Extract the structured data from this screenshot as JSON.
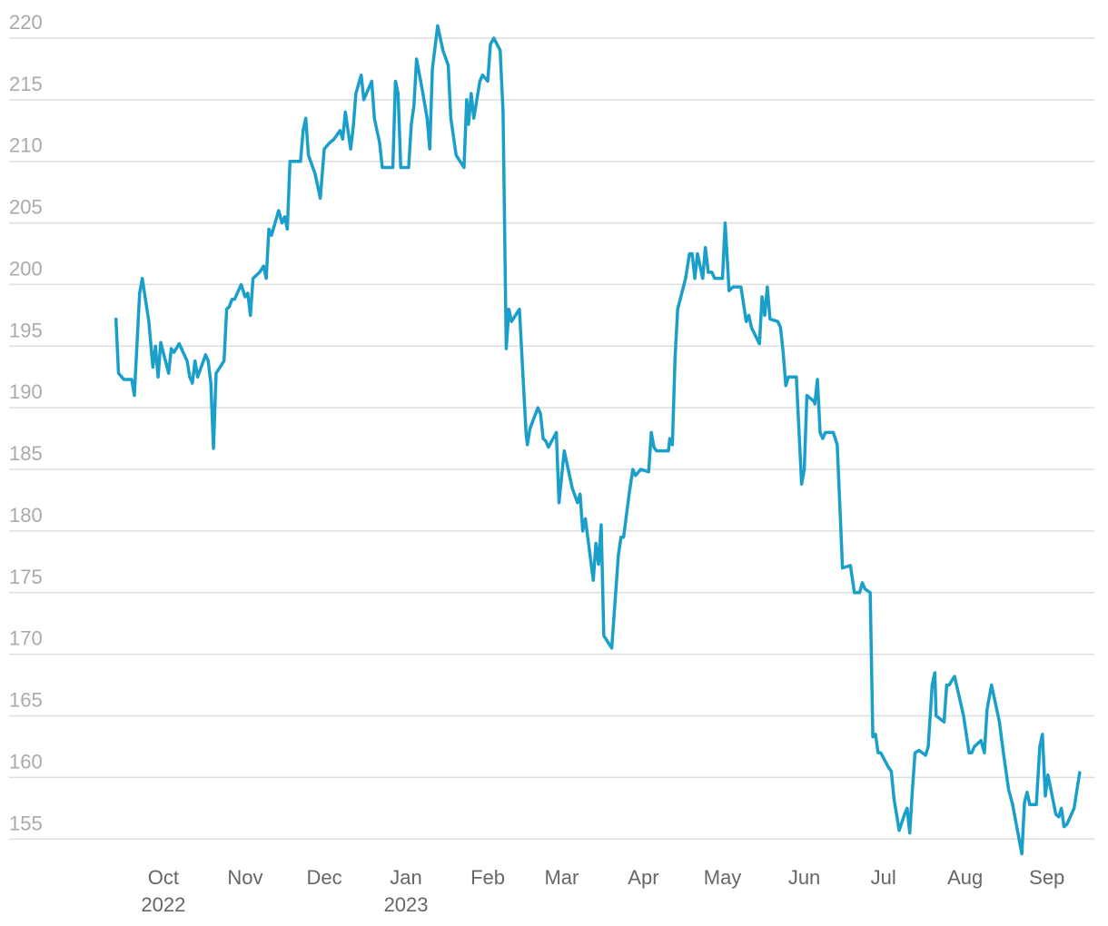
{
  "chart_data": {
    "type": "line",
    "color": "#1a9fcb",
    "grid": true,
    "xlim": [
      -58.5,
      353
    ],
    "ylim": [
      153,
      221.5
    ],
    "yticks": [
      155,
      160,
      165,
      170,
      175,
      180,
      185,
      190,
      195,
      200,
      205,
      210,
      215,
      220
    ],
    "xticks": [
      {
        "value": 0,
        "label": "Oct"
      },
      {
        "value": 31,
        "label": "Nov"
      },
      {
        "value": 61,
        "label": "Dec"
      },
      {
        "value": 92,
        "label": "Jan"
      },
      {
        "value": 123,
        "label": "Feb"
      },
      {
        "value": 151,
        "label": "Mar"
      },
      {
        "value": 182,
        "label": "Apr"
      },
      {
        "value": 212,
        "label": "May"
      },
      {
        "value": 243,
        "label": "Jun"
      },
      {
        "value": 273,
        "label": "Jul"
      },
      {
        "value": 304,
        "label": "Aug"
      },
      {
        "value": 335,
        "label": "Sep"
      }
    ],
    "year_labels": [
      {
        "value": 0,
        "label": "2022"
      },
      {
        "value": 92,
        "label": "2023"
      }
    ],
    "x": [
      -18,
      -17,
      -15,
      -12,
      -11,
      -9,
      -8,
      -5.5,
      -4,
      -3,
      -2,
      -1,
      2,
      3,
      4,
      6,
      9,
      10,
      11,
      12,
      13,
      16,
      17,
      18,
      19,
      20,
      23,
      24,
      25,
      26,
      27,
      29.5,
      31,
      32,
      33,
      34,
      36.5,
      38,
      39,
      40,
      41,
      43.7,
      45,
      46,
      47,
      48,
      52,
      53,
      54,
      55,
      57.5,
      59.5,
      61,
      63,
      64.7,
      67,
      68,
      69,
      71,
      72,
      73,
      75,
      76,
      79,
      80,
      82,
      83,
      87,
      88,
      89,
      90,
      93,
      94,
      95,
      96,
      98,
      100,
      101,
      102,
      104,
      106,
      108,
      109,
      111,
      114,
      115,
      115.7,
      116.7,
      117.7,
      120,
      121,
      123,
      124,
      125.3,
      127.7,
      128.8,
      130,
      131,
      132,
      135,
      137.5,
      138,
      139,
      142,
      143,
      144,
      145,
      146,
      149,
      150,
      152,
      155,
      157,
      158,
      159,
      160,
      163,
      164,
      165,
      166,
      167,
      170,
      171.5,
      172.5,
      173.5,
      174.5,
      176.6,
      178,
      179,
      181,
      184,
      185,
      186,
      187,
      191.5,
      192,
      193,
      194,
      195,
      198,
      199.5,
      200.5,
      201.5,
      202.5,
      204.5,
      205.5,
      206.6,
      208,
      209,
      212,
      213,
      214.5,
      216,
      219,
      221,
      222,
      223,
      226,
      227,
      228,
      229,
      230,
      233,
      234,
      235,
      236,
      237,
      240,
      242,
      243,
      244,
      246.8,
      247,
      248,
      249,
      250,
      251,
      254,
      255.5,
      257.5,
      260.5,
      262,
      264,
      265,
      266,
      268,
      269,
      270,
      271,
      272,
      275,
      276,
      277,
      279,
      281,
      282,
      283,
      284,
      285,
      286.5,
      289,
      290,
      291.5,
      292.5,
      293,
      296,
      297,
      298,
      299.3,
      300,
      303.4,
      305.5,
      306.5,
      307.5,
      310,
      311.3,
      312.3,
      314,
      317,
      318.5,
      320.5,
      322,
      325.5,
      326.5,
      327.5,
      328.5,
      331,
      332.3,
      333.3,
      334.4,
      335.4,
      338.4,
      339.5,
      340.5,
      341.5,
      342.6,
      345.3,
      347.5
    ],
    "values": [
      197.3,
      192.8,
      192.3,
      192.3,
      191,
      199.3,
      200.5,
      197,
      193.3,
      195,
      192.5,
      195.3,
      192.8,
      194.8,
      194.5,
      195.2,
      193.8,
      192.5,
      192,
      193.8,
      192.5,
      194.3,
      193.8,
      192,
      186.7,
      192.8,
      193.8,
      198,
      198.2,
      198.8,
      198.8,
      200,
      199,
      199.3,
      197.5,
      200.5,
      201,
      201.5,
      200.5,
      204.5,
      204,
      206,
      205,
      205.5,
      204.5,
      210,
      210,
      212.5,
      213.5,
      210.5,
      209,
      207,
      211,
      211.5,
      211.8,
      212.5,
      211.8,
      214,
      211,
      212.8,
      215.5,
      217,
      215,
      216.5,
      213.5,
      211.5,
      209.5,
      209.5,
      216.5,
      215.5,
      209.5,
      209.5,
      213,
      214.5,
      218.3,
      216,
      213.5,
      211,
      217.5,
      221,
      219,
      217.8,
      213.5,
      210.5,
      209.5,
      215,
      213,
      215.5,
      213.5,
      216.5,
      217,
      216.5,
      219.5,
      220,
      219,
      214,
      194.8,
      198,
      197,
      198,
      188,
      187,
      188.3,
      190,
      189.5,
      187.5,
      187.3,
      186.8,
      188,
      182.3,
      186.5,
      183.5,
      182.3,
      183,
      180,
      181,
      176,
      179,
      177.3,
      180.5,
      171.5,
      170.5,
      175,
      178,
      179.5,
      179.5,
      183,
      185,
      184.5,
      185,
      184.8,
      188,
      186.8,
      186.5,
      186.5,
      187.5,
      187,
      194,
      198,
      200.5,
      202.5,
      202.5,
      200.5,
      202.5,
      200.5,
      203,
      201,
      201,
      200.5,
      200.5,
      205,
      199.5,
      199.8,
      199.8,
      197,
      197.5,
      196.5,
      195.2,
      199,
      197.5,
      199.8,
      197.2,
      197,
      196.5,
      194.5,
      191.8,
      192.5,
      192.5,
      183.8,
      185,
      191,
      190.5,
      190.3,
      192.3,
      188,
      187.5,
      188,
      188,
      187,
      177,
      177.2,
      175,
      175,
      175.8,
      175.3,
      175,
      163.3,
      163.5,
      162,
      162,
      160.8,
      160.5,
      158.3,
      155.7,
      157,
      157.5,
      155.5,
      159,
      162,
      162.2,
      161.8,
      162.5,
      167.5,
      168.5,
      165,
      164.5,
      167.5,
      167.5,
      168,
      168.2,
      165,
      162,
      162,
      162.5,
      163,
      162,
      165.5,
      167.5,
      164.5,
      162,
      159,
      157.8,
      153.8,
      158,
      158.8,
      157.8,
      157.8,
      162.5,
      163.5,
      158.5,
      160.2,
      157,
      156.8,
      157.5,
      156,
      156.2,
      157.5,
      160.5
    ]
  }
}
